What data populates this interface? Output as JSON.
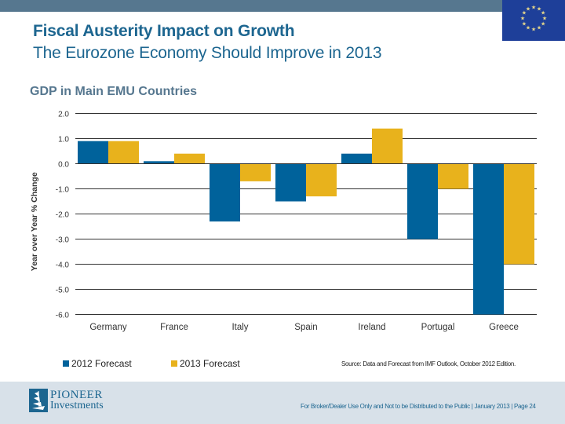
{
  "header": {
    "title": "Fiscal Austerity Impact on Growth",
    "subtitle": "The Eurozone Economy Should Improve in 2013",
    "flag_icon": "eu-flag-icon"
  },
  "colors": {
    "topbar": "#56778f",
    "title": "#1d6690",
    "series_2012": "#00629b",
    "series_2013": "#e8b21c",
    "footer": "#d8e1e9"
  },
  "chart_data": {
    "type": "bar",
    "title": "GDP in Main EMU Countries",
    "xlabel": "",
    "ylabel": "Year over Year % Change",
    "categories": [
      "Germany",
      "France",
      "Italy",
      "Spain",
      "Ireland",
      "Portugal",
      "Greece"
    ],
    "series": [
      {
        "name": "2012 Forecast",
        "values": [
          0.9,
          0.1,
          -2.3,
          -1.5,
          0.4,
          -3.0,
          -6.0
        ]
      },
      {
        "name": "2013 Forecast",
        "values": [
          0.9,
          0.4,
          -0.7,
          -1.3,
          1.4,
          -1.0,
          -4.0
        ]
      }
    ],
    "ylim": [
      -6.0,
      2.0
    ],
    "yticks": [
      2.0,
      1.0,
      0.0,
      -1.0,
      -2.0,
      -3.0,
      -4.0,
      -5.0,
      -6.0
    ],
    "ytick_labels": [
      "2.0",
      "1.0",
      "0.0",
      "-1.0",
      "-2.0",
      "-3.0",
      "-4.0",
      "-5.0",
      "-6.0"
    ],
    "grid": true,
    "legend": "bottom-left"
  },
  "legend": {
    "items": [
      {
        "label": "2012 Forecast"
      },
      {
        "label": "2013 Forecast"
      }
    ]
  },
  "source": "Source: Data and Forecast from IMF Outlook, October 2012 Edition.",
  "footer": {
    "logo_line1": "PIONEER",
    "logo_line2": "Investments",
    "disclaimer": "For Broker/Dealer Use Only and Not to be Distributed to the Public  | January 2013  | Page 24"
  }
}
